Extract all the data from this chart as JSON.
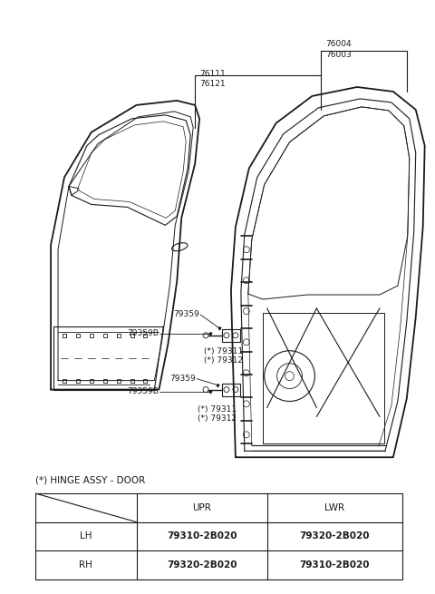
{
  "bg_color": "#ffffff",
  "line_color": "#1a1a1a",
  "fs_label": 6.5,
  "fs_table": 7.5,
  "fs_title": 7.5,
  "table_title": "(*) HINGE ASSY - DOOR",
  "table_col_headers": [
    "UPR",
    "LWR"
  ],
  "table_row_labels": [
    "LH",
    "RH"
  ],
  "table_data": [
    [
      "79310-2B020",
      "79320-2B020"
    ],
    [
      "79320-2B020",
      "79310-2B020"
    ]
  ],
  "part_labels_top": {
    "76004": [
      0.545,
      0.948
    ],
    "76003": [
      0.545,
      0.934
    ]
  },
  "part_labels_left": {
    "76111": [
      0.268,
      0.875
    ],
    "76121": [
      0.268,
      0.861
    ]
  }
}
